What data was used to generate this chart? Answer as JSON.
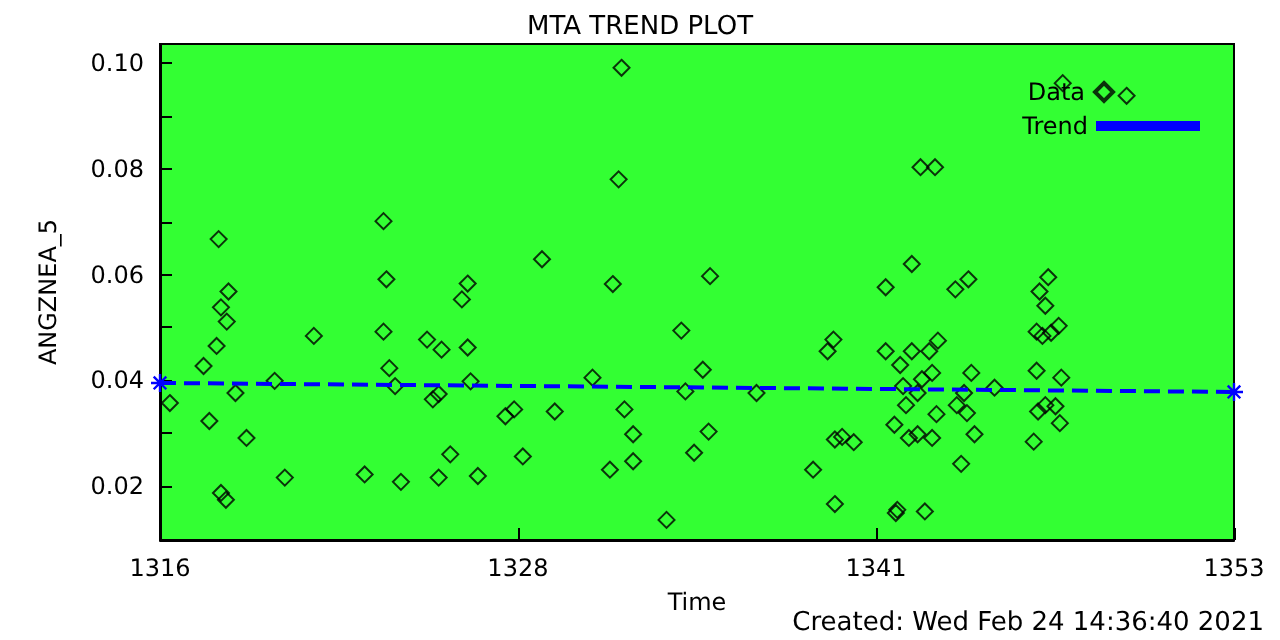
{
  "chart_data": {
    "type": "scatter",
    "title": "MTA TREND PLOT",
    "xlabel": "Time",
    "ylabel": "ANGZNEA_5",
    "annotations": [
      "Created: Wed Feb 24 14:36:40 2021"
    ],
    "xlim": [
      1316,
      1353
    ],
    "xticks": [
      1316,
      {
        "value": 1328.33,
        "label": "1328"
      },
      {
        "value": 1340.67,
        "label": "1341"
      },
      1353
    ],
    "ylim": [
      0.0098,
      0.1036
    ],
    "yticks": [
      0.02,
      {
        "value": 0.03,
        "label": null
      },
      {
        "value": 0.04,
        "label": "0.04"
      },
      {
        "value": 0.05,
        "label": null
      },
      {
        "value": 0.06,
        "label": "0.06"
      },
      {
        "value": 0.07,
        "label": null
      },
      {
        "value": 0.08,
        "label": "0.08"
      },
      {
        "value": 0.09,
        "label": null
      },
      {
        "value": 0.1,
        "label": "0.10"
      }
    ],
    "grid": false,
    "legend": "top right",
    "series": [
      {
        "name": "Data",
        "marker": "diamond",
        "color": "#000000",
        "x": [
          1316.34,
          1318.02,
          1317.5,
          1317.95,
          1318.1,
          1318.36,
          1318.3,
          1317.7,
          1318.6,
          1318.98,
          1318.1,
          1318.27,
          1319.95,
          1320.3,
          1321.3,
          1323.05,
          1323.7,
          1323.8,
          1323.7,
          1323.9,
          1324.1,
          1324.3,
          1325.2,
          1325.7,
          1325.4,
          1325.6,
          1326.0,
          1325.6,
          1326.4,
          1326.6,
          1326.6,
          1326.7,
          1326.95,
          1327.9,
          1328.2,
          1328.5,
          1329.16,
          1329.6,
          1330.9,
          1331.5,
          1331.6,
          1331.8,
          1331.9,
          1332.0,
          1332.3,
          1332.3,
          1333.45,
          1333.96,
          1334.1,
          1334.4,
          1334.7,
          1334.9,
          1334.95,
          1336.55,
          1338.5,
          1339.0,
          1339.2,
          1339.25,
          1339.25,
          1339.5,
          1339.9,
          1341.0,
          1341.0,
          1341.3,
          1341.4,
          1341.35,
          1341.5,
          1341.6,
          1341.7,
          1341.8,
          1341.9,
          1341.9,
          1342.1,
          1342.1,
          1342.2,
          1342.25,
          1342.35,
          1342.5,
          1342.6,
          1342.6,
          1342.7,
          1342.75,
          1342.8,
          1343.4,
          1343.45,
          1343.6,
          1343.7,
          1343.8,
          1343.85,
          1343.95,
          1344.06,
          1344.75,
          1346.1,
          1346.2,
          1346.2,
          1346.25,
          1346.3,
          1346.4,
          1346.5,
          1346.6,
          1346.5,
          1346.7,
          1346.85,
          1346.96,
          1347.0,
          1347.05,
          1347.1,
          1349.3
        ],
        "values": [
          0.0357,
          0.0667,
          0.0427,
          0.0465,
          0.0538,
          0.0568,
          0.0511,
          0.0323,
          0.0376,
          0.0291,
          0.0187,
          0.0174,
          0.0399,
          0.0216,
          0.0484,
          0.0222,
          0.0701,
          0.0591,
          0.0492,
          0.0423,
          0.0389,
          0.0208,
          0.0477,
          0.0458,
          0.0364,
          0.0374,
          0.026,
          0.0216,
          0.0553,
          0.0583,
          0.0462,
          0.0398,
          0.0219,
          0.0332,
          0.0345,
          0.0256,
          0.0629,
          0.0341,
          0.0405,
          0.0231,
          0.0582,
          0.078,
          0.0991,
          0.0345,
          0.0298,
          0.0247,
          0.0136,
          0.0494,
          0.0379,
          0.0263,
          0.042,
          0.0303,
          0.0597,
          0.0376,
          0.0231,
          0.0455,
          0.0477,
          0.0166,
          0.0288,
          0.0293,
          0.0283,
          0.0576,
          0.0455,
          0.0316,
          0.0155,
          0.0149,
          0.0429,
          0.0389,
          0.0353,
          0.0291,
          0.062,
          0.0455,
          0.0298,
          0.0376,
          0.0803,
          0.0402,
          0.0152,
          0.0455,
          0.0414,
          0.0291,
          0.0803,
          0.0336,
          0.0475,
          0.0572,
          0.0353,
          0.0242,
          0.0376,
          0.0338,
          0.0591,
          0.0414,
          0.0298,
          0.0386,
          0.0284,
          0.0418,
          0.0492,
          0.0341,
          0.0568,
          0.0484,
          0.0541,
          0.0595,
          0.0353,
          0.049,
          0.0351,
          0.0503,
          0.0319,
          0.0405,
          0.0962,
          0.0938
        ]
      },
      {
        "name": "Trend",
        "type": "line",
        "marker": "cross",
        "line_style": "dashed",
        "color": "#0000ff",
        "x": [
          1316,
          1353
        ],
        "values": [
          0.0395,
          0.0378
        ]
      }
    ]
  }
}
